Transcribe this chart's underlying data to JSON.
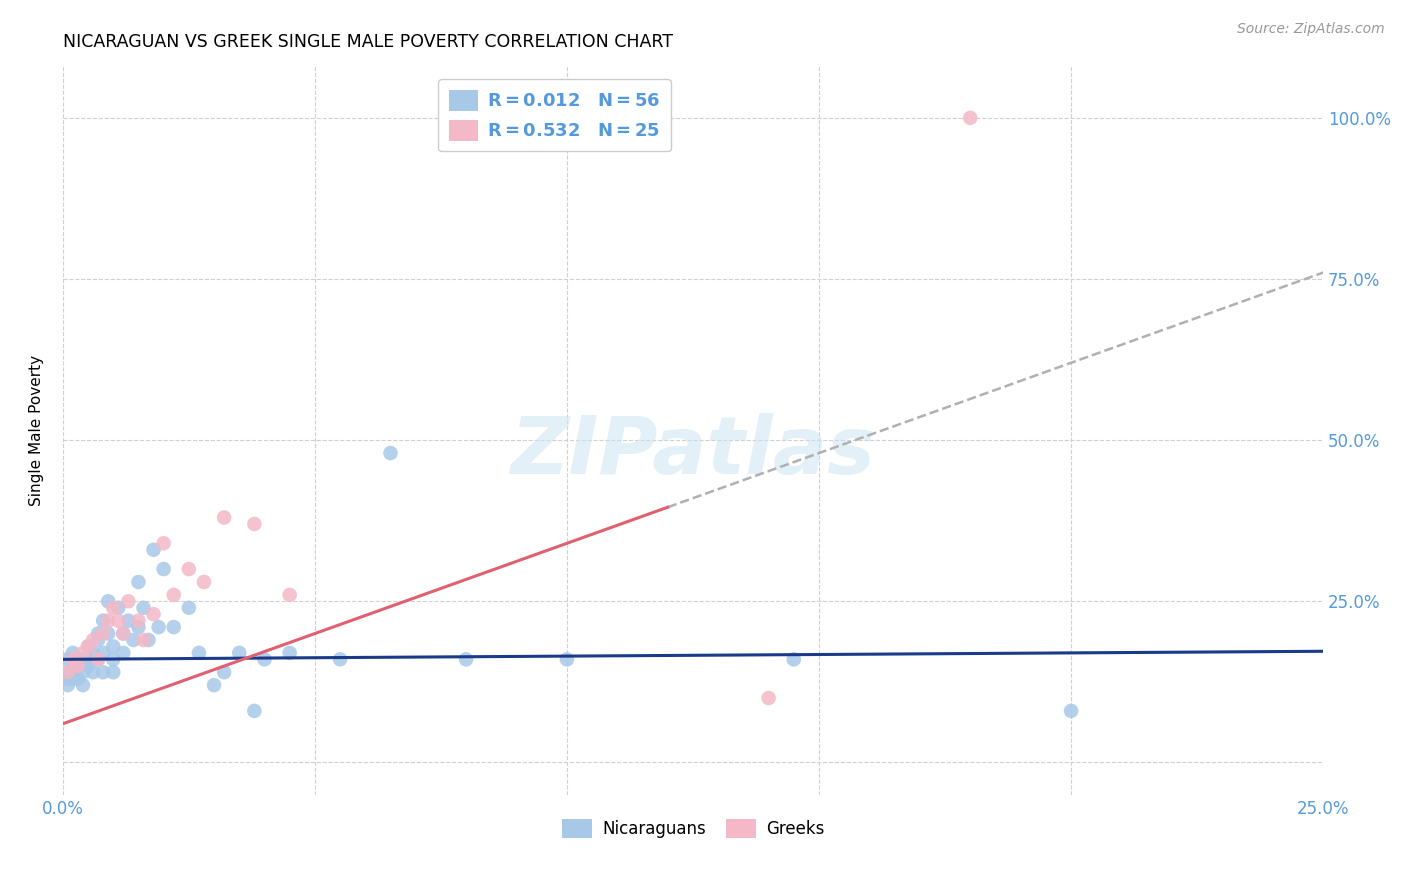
{
  "title": "NICARAGUAN VS GREEK SINGLE MALE POVERTY CORRELATION CHART",
  "source": "Source: ZipAtlas.com",
  "ylabel": "Single Male Poverty",
  "xlim": [
    0.0,
    0.25
  ],
  "ylim": [
    -0.05,
    1.08
  ],
  "background_color": "#ffffff",
  "grid_color": "#d0d0d0",
  "watermark": "ZIPatlas",
  "nic_color": "#a8c8e8",
  "greek_color": "#f4b8c8",
  "nic_line_color": "#1a3a8a",
  "greek_line_color": "#e06070",
  "dash_color": "#b0b0b0",
  "right_tick_color": "#5599dd",
  "xtick_color": "#5599dd",
  "legend_R_N": [
    {
      "R": "0.012",
      "N": "56",
      "color": "#a8c8e8"
    },
    {
      "R": "0.532",
      "N": "25",
      "color": "#f4b8c8"
    }
  ],
  "nic_trend": {
    "slope": 0.05,
    "intercept": 0.16
  },
  "greek_trend": {
    "slope": 2.8,
    "intercept": 0.06
  },
  "dash_line": {
    "x0": 0.12,
    "x1": 0.255,
    "slope": 2.8,
    "intercept": 0.06
  },
  "nicaraguans_x": [
    0.001,
    0.001,
    0.001,
    0.001,
    0.002,
    0.002,
    0.002,
    0.003,
    0.003,
    0.003,
    0.004,
    0.004,
    0.004,
    0.005,
    0.005,
    0.005,
    0.006,
    0.006,
    0.007,
    0.007,
    0.007,
    0.008,
    0.008,
    0.008,
    0.009,
    0.009,
    0.01,
    0.01,
    0.01,
    0.011,
    0.012,
    0.012,
    0.013,
    0.014,
    0.015,
    0.015,
    0.016,
    0.017,
    0.018,
    0.019,
    0.02,
    0.022,
    0.025,
    0.027,
    0.03,
    0.032,
    0.035,
    0.038,
    0.04,
    0.045,
    0.055,
    0.065,
    0.08,
    0.1,
    0.145,
    0.2
  ],
  "nicaraguans_y": [
    0.16,
    0.14,
    0.13,
    0.12,
    0.15,
    0.13,
    0.17,
    0.16,
    0.15,
    0.13,
    0.14,
    0.16,
    0.12,
    0.18,
    0.15,
    0.16,
    0.14,
    0.17,
    0.19,
    0.2,
    0.16,
    0.22,
    0.17,
    0.14,
    0.25,
    0.2,
    0.18,
    0.16,
    0.14,
    0.24,
    0.2,
    0.17,
    0.22,
    0.19,
    0.28,
    0.21,
    0.24,
    0.19,
    0.33,
    0.21,
    0.3,
    0.21,
    0.24,
    0.17,
    0.12,
    0.14,
    0.17,
    0.08,
    0.16,
    0.17,
    0.16,
    0.48,
    0.16,
    0.16,
    0.16,
    0.08
  ],
  "greeks_x": [
    0.001,
    0.002,
    0.003,
    0.004,
    0.005,
    0.006,
    0.007,
    0.008,
    0.009,
    0.01,
    0.011,
    0.012,
    0.013,
    0.015,
    0.016,
    0.018,
    0.02,
    0.022,
    0.025,
    0.028,
    0.032,
    0.038,
    0.045,
    0.14,
    0.18
  ],
  "greeks_y": [
    0.14,
    0.16,
    0.15,
    0.17,
    0.18,
    0.19,
    0.16,
    0.2,
    0.22,
    0.24,
    0.22,
    0.2,
    0.25,
    0.22,
    0.19,
    0.23,
    0.34,
    0.26,
    0.3,
    0.28,
    0.38,
    0.37,
    0.26,
    0.1,
    1.0
  ]
}
